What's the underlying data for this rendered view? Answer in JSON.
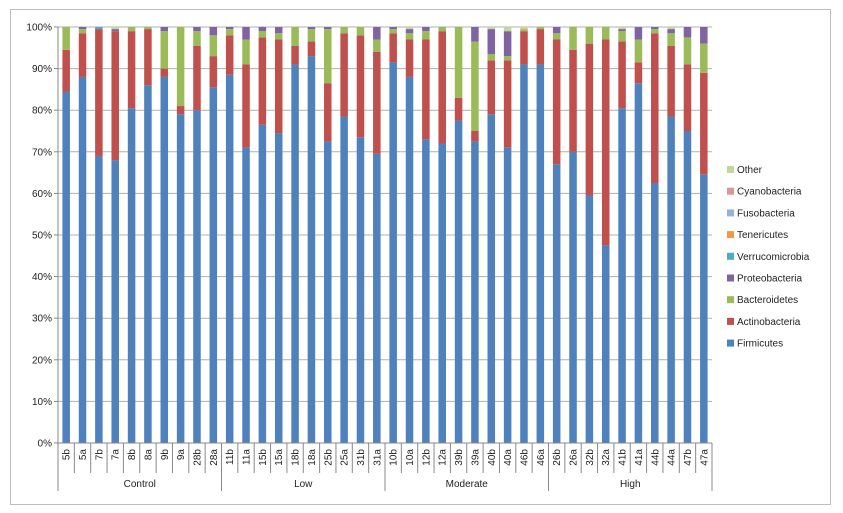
{
  "chart_data": {
    "type": "bar",
    "stacked": true,
    "percent": true,
    "title": "",
    "xlabel": "",
    "ylabel": "",
    "ylim": [
      0,
      100
    ],
    "yticks": [
      "0%",
      "10%",
      "20%",
      "30%",
      "40%",
      "50%",
      "60%",
      "70%",
      "80%",
      "90%",
      "100%"
    ],
    "grid": true,
    "legend_position": "right",
    "categories": [
      "5b",
      "5a",
      "7b",
      "7a",
      "8b",
      "8a",
      "9b",
      "9a",
      "28b",
      "28a",
      "11b",
      "11a",
      "15b",
      "15a",
      "18b",
      "18a",
      "25b",
      "25a",
      "31b",
      "31a",
      "10b",
      "10a",
      "12b",
      "12a",
      "39b",
      "39a",
      "40b",
      "40a",
      "46b",
      "46a",
      "26b",
      "26a",
      "32b",
      "32a",
      "41b",
      "41a",
      "44b",
      "44a",
      "47b",
      "47a"
    ],
    "groups": [
      {
        "label": "Control",
        "count": 10
      },
      {
        "label": "Low",
        "count": 10
      },
      {
        "label": "Moderate",
        "count": 10
      },
      {
        "label": "High",
        "count": 10
      }
    ],
    "series": [
      {
        "name": "Firmicutes",
        "color": "#4f81bd",
        "values": [
          84.5,
          88,
          69,
          68,
          80.5,
          86,
          88,
          79,
          80,
          85.5,
          88.5,
          71,
          76.5,
          74.5,
          91,
          93,
          72.5,
          78.5,
          73.5,
          69.5,
          91.5,
          88,
          73,
          72,
          77.5,
          72.5,
          79,
          71,
          91,
          91,
          67,
          70,
          59.5,
          47.5,
          80.5,
          86.5,
          62.5,
          78.5,
          75,
          64.5
        ]
      },
      {
        "name": "Actinobacteria",
        "color": "#c0504d",
        "values": [
          10,
          10.5,
          30.5,
          31,
          18.5,
          13.5,
          2,
          2,
          15.5,
          7.5,
          9.5,
          20,
          21,
          22.5,
          4.5,
          3.5,
          14,
          20,
          24.5,
          24.5,
          7,
          9,
          24,
          27,
          5.5,
          2.5,
          13,
          21,
          8,
          8.5,
          30,
          24.5,
          36.5,
          49.5,
          16,
          5,
          36,
          17,
          16,
          24.5
        ]
      },
      {
        "name": "Bacteroidetes",
        "color": "#9bbb59",
        "values": [
          5.5,
          1,
          0,
          0,
          1,
          0.5,
          9,
          19,
          3.5,
          5,
          1.5,
          6,
          1.5,
          1.5,
          4.5,
          3,
          13,
          1.5,
          2,
          3,
          1,
          1.5,
          2,
          1,
          17,
          21.5,
          1.5,
          1,
          0.5,
          0.5,
          1.5,
          5.5,
          4,
          3,
          2.5,
          5.5,
          1,
          3,
          6.5,
          7
        ]
      },
      {
        "name": "Proteobacteria",
        "color": "#8064a2",
        "values": [
          0,
          0.5,
          0,
          0.5,
          0,
          0,
          1,
          0,
          1,
          2,
          0.5,
          3,
          1,
          1.5,
          0,
          0.5,
          0.5,
          0,
          0,
          3,
          0.5,
          1,
          1,
          0,
          0,
          3.5,
          6,
          6,
          0,
          0,
          1.5,
          0,
          0,
          0,
          0.5,
          3,
          0.5,
          1,
          2.5,
          4
        ]
      },
      {
        "name": "Verrucomicrobia",
        "color": "#4bacc6",
        "values": [
          0,
          0,
          0.5,
          0,
          0,
          0,
          0,
          0,
          0,
          0,
          0,
          0,
          0,
          0,
          0,
          0,
          0,
          0,
          0,
          0,
          0,
          0,
          0,
          0,
          0,
          0,
          0,
          0,
          0,
          0,
          0,
          0,
          0,
          0,
          0,
          0,
          0,
          0,
          0,
          0
        ]
      },
      {
        "name": "Tenericutes",
        "color": "#f79646",
        "values": [
          0,
          0,
          0,
          0,
          0,
          0,
          0,
          0,
          0,
          0,
          0,
          0,
          0,
          0,
          0,
          0,
          0,
          0,
          0,
          0,
          0,
          0,
          0,
          0,
          0,
          0,
          0,
          0,
          0,
          0,
          0,
          0,
          0,
          0,
          0,
          0,
          0,
          0,
          0,
          0
        ]
      },
      {
        "name": "Fusobacteria",
        "color": "#95b3d7",
        "values": [
          0,
          0,
          0,
          0,
          0,
          0,
          0,
          0,
          0,
          0,
          0,
          0,
          0,
          0,
          0,
          0,
          0,
          0,
          0,
          0,
          0,
          0,
          0,
          0,
          0,
          0,
          0,
          0,
          0,
          0,
          0,
          0,
          0,
          0,
          0,
          0,
          0,
          0,
          0,
          0
        ]
      },
      {
        "name": "Cyanobacteria",
        "color": "#da9694",
        "values": [
          0,
          0,
          0,
          0,
          0,
          0,
          0,
          0,
          0,
          0,
          0,
          0,
          0,
          0,
          0,
          0,
          0,
          0,
          0,
          0,
          0,
          0,
          0,
          0,
          0,
          0,
          0,
          0,
          0,
          0,
          0,
          0,
          0,
          0,
          0,
          0,
          0,
          0,
          0,
          0
        ]
      },
      {
        "name": "Other",
        "color": "#c4d79b",
        "values": [
          0,
          0,
          0,
          0.5,
          0,
          0,
          0,
          0,
          0,
          0,
          0,
          0,
          0,
          0,
          0,
          0,
          0,
          0,
          0,
          0,
          0,
          0.5,
          0,
          0,
          0,
          0,
          0.5,
          1,
          0.5,
          0,
          0,
          0,
          0,
          0,
          0.5,
          0,
          0,
          0.5,
          0,
          0
        ]
      }
    ],
    "legend_order": [
      "Other",
      "Cyanobacteria",
      "Fusobacteria",
      "Tenericutes",
      "Verrucomicrobia",
      "Proteobacteria",
      "Bacteroidetes",
      "Actinobacteria",
      "Firmicutes"
    ]
  }
}
